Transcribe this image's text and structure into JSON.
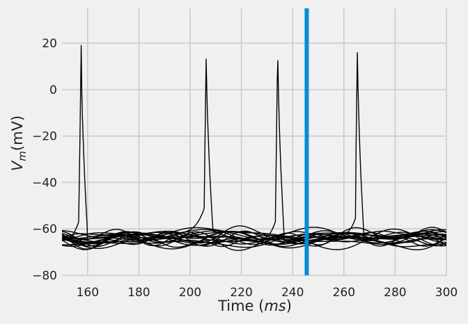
{
  "figure": {
    "background": "#f0f0f0",
    "grid_color": "#cbcbcb",
    "trace_color": "#000000",
    "marker_color": "#008fd5"
  },
  "chart_data": {
    "type": "line",
    "title": "",
    "xlabel": "Time (ms)",
    "xlabel_plain": "Time (",
    "xlabel_italic": "ms",
    "xlabel_close": ")",
    "ylabel": "V_m(mV)",
    "ylabel_main": "V",
    "ylabel_sub": "m",
    "ylabel_unit": "(mV)",
    "xlim": [
      150,
      300
    ],
    "ylim": [
      -80,
      35
    ],
    "xticks": [
      160,
      180,
      200,
      220,
      240,
      260,
      280,
      300
    ],
    "xtick_labels": [
      "160",
      "180",
      "200",
      "220",
      "240",
      "260",
      "280",
      "300"
    ],
    "yticks": [
      20,
      0,
      -20,
      -40,
      -60,
      -80
    ],
    "ytick_labels": [
      "20",
      "0",
      "−20",
      "−40",
      "−60",
      "−80"
    ],
    "grid": true,
    "legend": null,
    "n_traces_approx": 20,
    "resting_band_mV": [
      -69,
      -57
    ],
    "spikes": [
      {
        "t_ms": 157.5,
        "peak_mV": 19
      },
      {
        "t_ms": 206.3,
        "peak_mV": 17
      },
      {
        "t_ms": 234.2,
        "peak_mV": 20.5
      },
      {
        "t_ms": 265.3,
        "peak_mV": 20
      }
    ],
    "vertical_marker": {
      "x_ms": 245.5,
      "color": "#008fd5"
    }
  }
}
